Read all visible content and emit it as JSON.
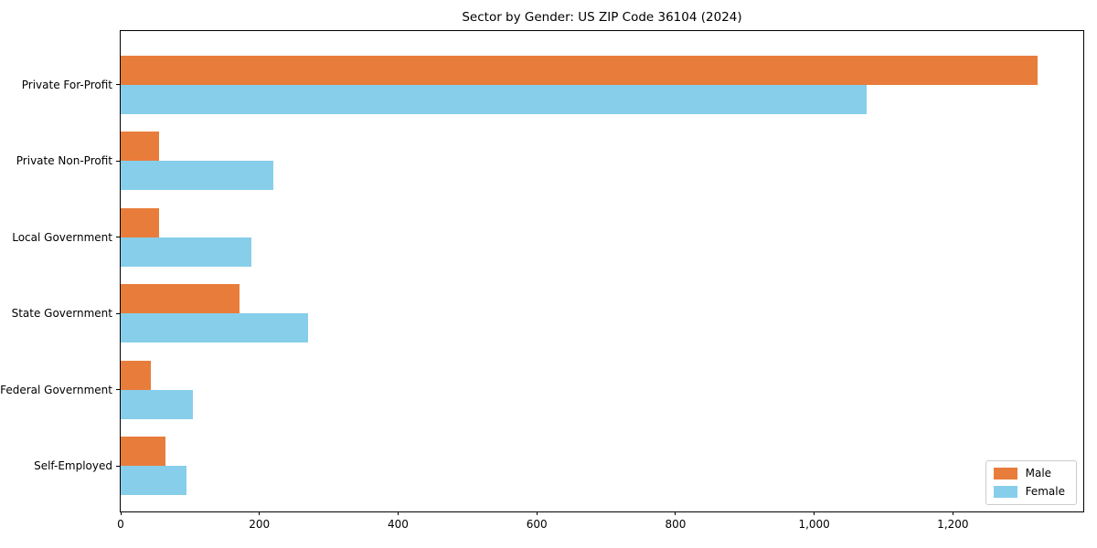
{
  "figure": {
    "background": "#ffffff",
    "text_color": "#000000",
    "spine_color": "#000000"
  },
  "chart_data": {
    "type": "bar",
    "orientation": "horizontal",
    "title": "Sector by Gender: US ZIP Code 36104 (2024)",
    "xlabel": "",
    "ylabel": "",
    "grid": false,
    "categories": [
      "Private For-Profit",
      "Private Non-Profit",
      "Local Government",
      "State Government",
      "Federal Government",
      "Self-Employed"
    ],
    "series": [
      {
        "name": "Male",
        "color": "#e87d3b",
        "values": [
          1322,
          55,
          55,
          171,
          44,
          65
        ]
      },
      {
        "name": "Female",
        "color": "#87ceeb",
        "values": [
          1075,
          220,
          188,
          270,
          104,
          95
        ]
      }
    ],
    "xlim": [
      0,
      1388
    ],
    "x_ticks": [
      {
        "value": 0,
        "label": "0"
      },
      {
        "value": 200,
        "label": "200"
      },
      {
        "value": 400,
        "label": "400"
      },
      {
        "value": 600,
        "label": "600"
      },
      {
        "value": 800,
        "label": "800"
      },
      {
        "value": 1000,
        "label": "1,000"
      },
      {
        "value": 1200,
        "label": "1,200"
      }
    ],
    "legend": {
      "position": "lower right",
      "entries": [
        "Male",
        "Female"
      ]
    }
  }
}
